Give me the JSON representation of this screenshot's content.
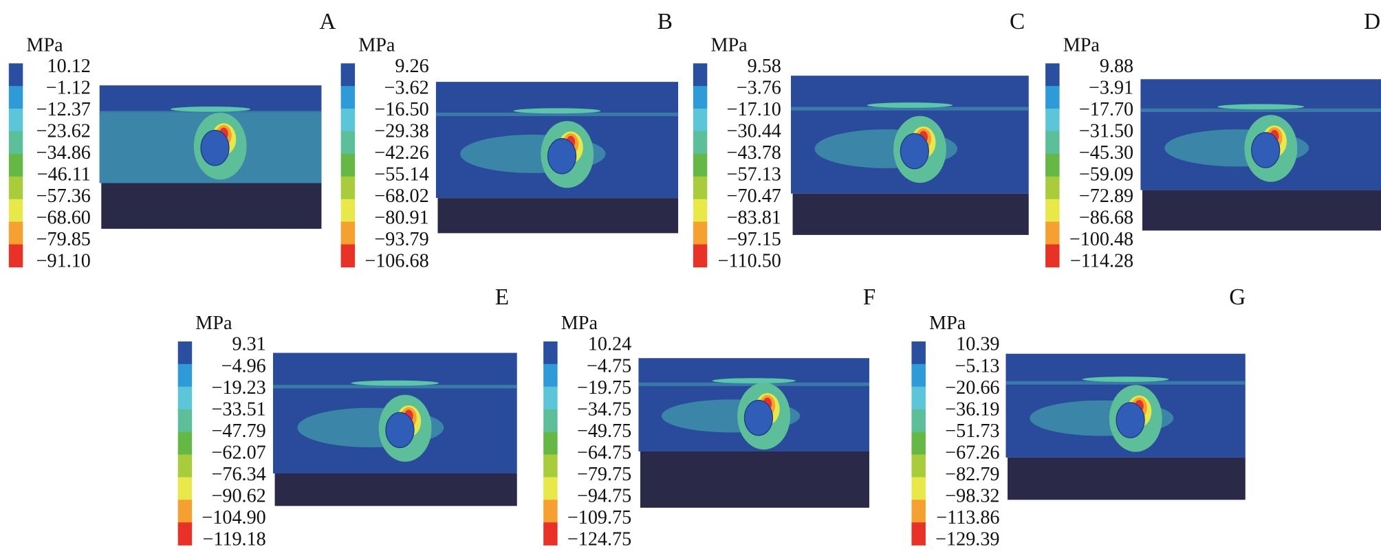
{
  "panels": [
    {
      "label": "A",
      "unit": "MPa",
      "legend": [
        "10.12",
        "−1.12",
        "−12.37",
        "−23.62",
        "−34.86",
        "−46.11",
        "−57.36",
        "−68.60",
        "−79.85",
        "−91.10"
      ]
    },
    {
      "label": "B",
      "unit": "MPa",
      "legend": [
        "9.26",
        "−3.62",
        "−16.50",
        "−29.38",
        "−42.26",
        "−55.14",
        "−68.02",
        "−80.91",
        "−93.79",
        "−106.68"
      ]
    },
    {
      "label": "C",
      "unit": "MPa",
      "legend": [
        "9.58",
        "−3.76",
        "−17.10",
        "−30.44",
        "−43.78",
        "−57.13",
        "−70.47",
        "−83.81",
        "−97.15",
        "−110.50"
      ]
    },
    {
      "label": "D",
      "unit": "MPa",
      "legend": [
        "9.88",
        "−3.91",
        "−17.70",
        "−31.50",
        "−45.30",
        "−59.09",
        "−72.89",
        "−86.68",
        "−100.48",
        "−114.28"
      ]
    },
    {
      "label": "E",
      "unit": "MPa",
      "legend": [
        "9.31",
        "−4.96",
        "−19.23",
        "−33.51",
        "−47.79",
        "−62.07",
        "−76.34",
        "−90.62",
        "−104.90",
        "−119.18"
      ]
    },
    {
      "label": "F",
      "unit": "MPa",
      "legend": [
        "10.24",
        "−4.75",
        "−19.75",
        "−34.75",
        "−49.75",
        "−64.75",
        "−79.75",
        "−94.75",
        "−109.75",
        "−124.75"
      ]
    },
    {
      "label": "G",
      "unit": "MPa",
      "legend": [
        "10.39",
        "−5.13",
        "−20.66",
        "−36.19",
        "−51.73",
        "−67.26",
        "−82.79",
        "−98.32",
        "−113.86",
        "−129.39"
      ]
    }
  ]
}
